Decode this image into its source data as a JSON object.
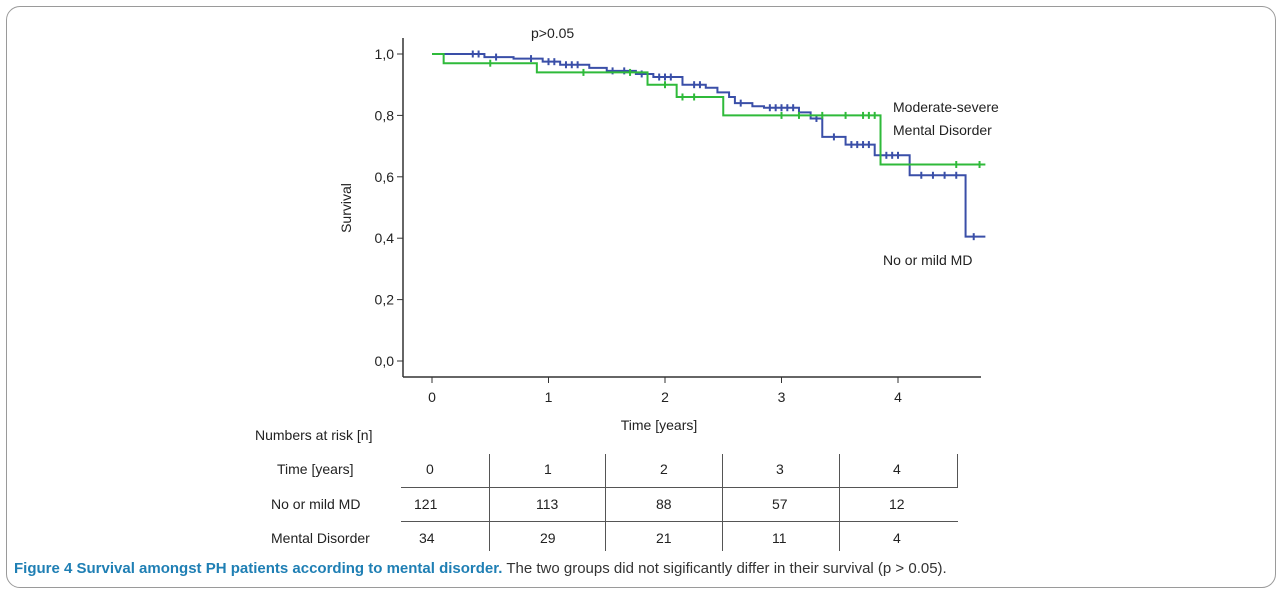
{
  "chart_data": {
    "type": "line",
    "step": true,
    "annotation": "p>0.05",
    "xlabel": "Time [years]",
    "ylabel": "Survival",
    "xlim": [
      -0.25,
      4.8
    ],
    "ylim": [
      0.0,
      1.0
    ],
    "x_ticks": [
      "0",
      "1",
      "2",
      "3",
      "4"
    ],
    "y_ticks": [
      "0,0",
      "0,2",
      "0,4",
      "0,6",
      "0,8",
      "1,0"
    ],
    "grid": false,
    "series": [
      {
        "name": "No or mild MD",
        "label_lines": [
          "No or mild MD"
        ],
        "color": "#3a4fa8",
        "steps": [
          [
            0,
            1.0
          ],
          [
            0.45,
            0.99
          ],
          [
            0.7,
            0.985
          ],
          [
            0.95,
            0.975
          ],
          [
            1.1,
            0.965
          ],
          [
            1.35,
            0.955
          ],
          [
            1.5,
            0.945
          ],
          [
            1.75,
            0.935
          ],
          [
            1.9,
            0.925
          ],
          [
            2.15,
            0.9
          ],
          [
            2.35,
            0.89
          ],
          [
            2.45,
            0.875
          ],
          [
            2.55,
            0.86
          ],
          [
            2.6,
            0.84
          ],
          [
            2.75,
            0.83
          ],
          [
            2.85,
            0.825
          ],
          [
            3.15,
            0.81
          ],
          [
            3.25,
            0.79
          ],
          [
            3.35,
            0.73
          ],
          [
            3.55,
            0.705
          ],
          [
            3.8,
            0.67
          ],
          [
            4.1,
            0.605
          ],
          [
            4.58,
            0.405
          ],
          [
            4.75,
            0.405
          ]
        ],
        "censored": [
          [
            0.35,
            1.0
          ],
          [
            0.4,
            1.0
          ],
          [
            0.55,
            0.99
          ],
          [
            0.85,
            0.985
          ],
          [
            1.0,
            0.975
          ],
          [
            1.05,
            0.975
          ],
          [
            1.15,
            0.965
          ],
          [
            1.2,
            0.965
          ],
          [
            1.25,
            0.965
          ],
          [
            1.55,
            0.945
          ],
          [
            1.65,
            0.945
          ],
          [
            1.8,
            0.935
          ],
          [
            1.95,
            0.925
          ],
          [
            2.0,
            0.925
          ],
          [
            2.05,
            0.925
          ],
          [
            2.25,
            0.9
          ],
          [
            2.3,
            0.9
          ],
          [
            2.65,
            0.84
          ],
          [
            2.9,
            0.825
          ],
          [
            2.95,
            0.825
          ],
          [
            3.0,
            0.825
          ],
          [
            3.05,
            0.825
          ],
          [
            3.1,
            0.825
          ],
          [
            3.3,
            0.79
          ],
          [
            3.45,
            0.73
          ],
          [
            3.6,
            0.705
          ],
          [
            3.65,
            0.705
          ],
          [
            3.7,
            0.705
          ],
          [
            3.75,
            0.705
          ],
          [
            3.9,
            0.67
          ],
          [
            3.95,
            0.67
          ],
          [
            4.0,
            0.67
          ],
          [
            4.2,
            0.605
          ],
          [
            4.3,
            0.605
          ],
          [
            4.4,
            0.605
          ],
          [
            4.5,
            0.605
          ],
          [
            4.65,
            0.405
          ]
        ]
      },
      {
        "name": "Moderate-severe Mental Disorder",
        "label_lines": [
          "Moderate-severe",
          "Mental Disorder"
        ],
        "color": "#2fba3a",
        "steps": [
          [
            0,
            1.0
          ],
          [
            0.1,
            0.97
          ],
          [
            0.9,
            0.94
          ],
          [
            1.85,
            0.9
          ],
          [
            2.1,
            0.86
          ],
          [
            2.5,
            0.8
          ],
          [
            3.85,
            0.64
          ],
          [
            4.75,
            0.64
          ]
        ],
        "censored": [
          [
            0.5,
            0.97
          ],
          [
            1.3,
            0.94
          ],
          [
            1.7,
            0.94
          ],
          [
            2.0,
            0.9
          ],
          [
            2.15,
            0.86
          ],
          [
            2.25,
            0.86
          ],
          [
            3.0,
            0.8
          ],
          [
            3.15,
            0.8
          ],
          [
            3.35,
            0.8
          ],
          [
            3.55,
            0.8
          ],
          [
            3.7,
            0.8
          ],
          [
            3.75,
            0.8
          ],
          [
            3.8,
            0.8
          ],
          [
            4.5,
            0.64
          ],
          [
            4.7,
            0.64
          ]
        ]
      }
    ]
  },
  "risk_table": {
    "heading": "Numbers at risk [n]",
    "header_label": "Time [years]",
    "times": [
      "0",
      "1",
      "2",
      "3",
      "4"
    ],
    "rows": [
      {
        "label": "No or mild MD",
        "values": [
          "121",
          "113",
          "88",
          "57",
          "12"
        ]
      },
      {
        "label": "Mental Disorder",
        "values": [
          "34",
          "29",
          "21",
          "11",
          "4"
        ]
      }
    ]
  },
  "caption": {
    "bold": "Figure 4 Survival amongst PH patients according to mental disorder.",
    "text": " The two groups did not sigificantly differ in their survival (p > 0.05)."
  }
}
